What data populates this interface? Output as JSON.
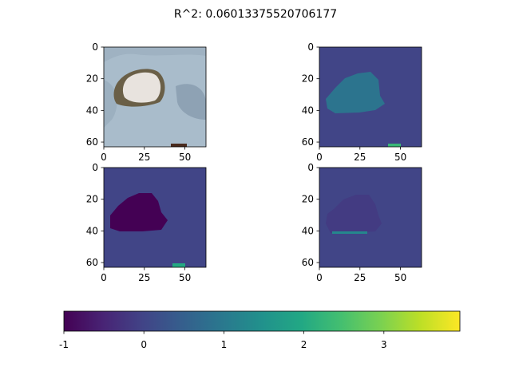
{
  "chart_data": {
    "type": "heatmap",
    "title": "R^2: 0.06013375520706177",
    "panels": [
      {
        "id": "original",
        "kind": "image",
        "xticks": [
          "0",
          "25",
          "50"
        ],
        "yticks": [
          "0",
          "20",
          "40",
          "60"
        ],
        "xlim": [
          0,
          63
        ],
        "ylim": [
          63,
          0
        ],
        "description_colors": {
          "background": "#a9bccb",
          "object": "#e8e3de",
          "shadow": "#6a5f47",
          "dark_spot": "#4a2a1c"
        }
      },
      {
        "id": "map_top_right",
        "kind": "heatmap",
        "xticks": [
          "0",
          "25",
          "50"
        ],
        "yticks": [
          "0",
          "20",
          "40",
          "60"
        ],
        "xlim": [
          0,
          63
        ],
        "ylim": [
          63,
          0
        ],
        "background_value": 0.0,
        "region_value": 0.9,
        "spot_value": 2.3
      },
      {
        "id": "map_bottom_left",
        "kind": "heatmap",
        "xticks": [
          "0",
          "25",
          "50"
        ],
        "yticks": [
          "0",
          "20",
          "40",
          "60"
        ],
        "xlim": [
          0,
          63
        ],
        "ylim": [
          63,
          0
        ],
        "background_value": 0.0,
        "region_value": -1.0,
        "spot_value": 2.0
      },
      {
        "id": "map_bottom_right",
        "kind": "heatmap",
        "xticks": [
          "0",
          "25",
          "50"
        ],
        "yticks": [
          "0",
          "20",
          "40",
          "60"
        ],
        "xlim": [
          0,
          63
        ],
        "ylim": [
          63,
          0
        ],
        "background_value": 0.0,
        "region_value": -0.15,
        "edge_value": 1.3
      }
    ],
    "colorbar": {
      "colormap": "viridis",
      "min": -1,
      "max": 3.95,
      "ticks": [
        "-1",
        "0",
        "1",
        "2",
        "3"
      ],
      "orientation": "horizontal"
    }
  }
}
